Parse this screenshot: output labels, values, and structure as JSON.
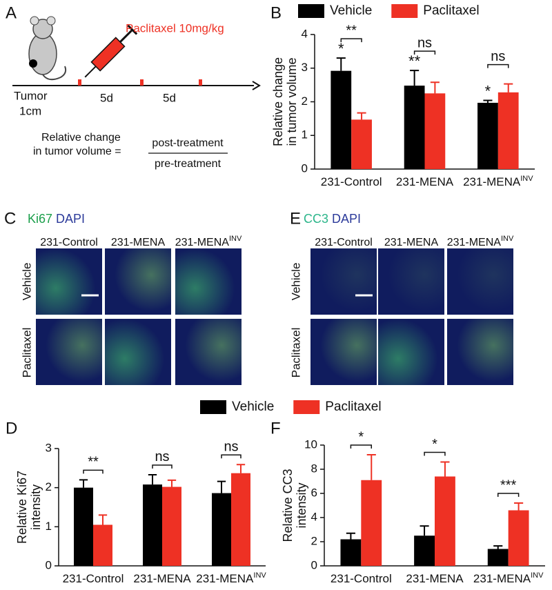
{
  "panel_labels": [
    "A",
    "B",
    "C",
    "D",
    "E",
    "F"
  ],
  "schematic": {
    "drug": "Paclitaxel 10mg/kg",
    "start": [
      "Tumor",
      "1cm"
    ],
    "intervals": [
      "5d",
      "5d"
    ],
    "formula": {
      "lhs": [
        "Relative change",
        "in tumor volume ="
      ],
      "numerator": "post-treatment",
      "denominator": "pre-treatment"
    }
  },
  "stains": [
    {
      "marker": "Ki67",
      "counter": "DAPI",
      "columns": [
        {
          "base": "231-Control"
        },
        {
          "base": "231-MENA"
        },
        {
          "base": "231-MENA",
          "sup": "INV"
        }
      ],
      "rows": [
        "Vehicle",
        "Paclitaxel"
      ]
    },
    {
      "marker": "CC3",
      "counter": "DAPI",
      "columns": [
        {
          "base": "231-Control"
        },
        {
          "base": "231-MENA"
        },
        {
          "base": "231-MENA",
          "sup": "INV"
        }
      ],
      "rows": [
        "Vehicle",
        "Paclitaxel"
      ]
    }
  ],
  "chart_data": [
    {
      "type": "bar",
      "ylabel": [
        "Relative change",
        "in tumor volume"
      ],
      "categories": [
        {
          "base": "231-Control"
        },
        {
          "base": "231-MENA"
        },
        {
          "base": "231-MENA",
          "sup": "INV"
        }
      ],
      "series": [
        {
          "name": "Vehicle",
          "color": "#000000",
          "values": [
            2.92,
            2.48,
            1.97
          ],
          "errors": [
            0.38,
            0.45,
            0.07
          ],
          "markers": [
            "*",
            "**",
            "*"
          ]
        },
        {
          "name": "Paclitaxel",
          "color": "#ee3124",
          "values": [
            1.47,
            2.25,
            2.28
          ],
          "errors": [
            0.2,
            0.33,
            0.25
          ]
        }
      ],
      "brackets": [
        "**",
        "ns",
        "ns"
      ],
      "ylim": [
        0,
        4
      ],
      "yticks": [
        0,
        1,
        2,
        3,
        4
      ],
      "legend": "top"
    },
    {
      "type": "bar",
      "ylabel": [
        "Relative Ki67",
        "intensity"
      ],
      "categories": [
        {
          "base": "231-Control"
        },
        {
          "base": "231-MENA"
        },
        {
          "base": "231-MENA",
          "sup": "INV"
        }
      ],
      "series": [
        {
          "name": "Vehicle",
          "color": "#000000",
          "values": [
            2.0,
            2.08,
            1.86
          ],
          "errors": [
            0.2,
            0.25,
            0.3
          ]
        },
        {
          "name": "Paclitaxel",
          "color": "#ee3124",
          "values": [
            1.05,
            2.02,
            2.37
          ],
          "errors": [
            0.25,
            0.17,
            0.22
          ]
        }
      ],
      "brackets": [
        "**",
        "ns",
        "ns"
      ],
      "ylim": [
        0,
        3
      ],
      "yticks": [
        0,
        1,
        2,
        3
      ],
      "legend": "top"
    },
    {
      "type": "bar",
      "ylabel": [
        "Relative CC3",
        "intensity"
      ],
      "categories": [
        {
          "base": "231-Control"
        },
        {
          "base": "231-MENA"
        },
        {
          "base": "231-MENA",
          "sup": "INV"
        }
      ],
      "series": [
        {
          "color": "#000000",
          "values": [
            2.2,
            2.5,
            1.4
          ],
          "errors": [
            0.5,
            0.8,
            0.25
          ]
        },
        {
          "color": "#ee3124",
          "values": [
            7.1,
            7.4,
            4.6
          ],
          "errors": [
            2.1,
            1.2,
            0.6
          ]
        }
      ],
      "brackets": [
        "*",
        "*",
        "***"
      ],
      "ylim": [
        0,
        10
      ],
      "yticks": [
        0,
        2,
        4,
        6,
        8,
        10
      ]
    }
  ]
}
